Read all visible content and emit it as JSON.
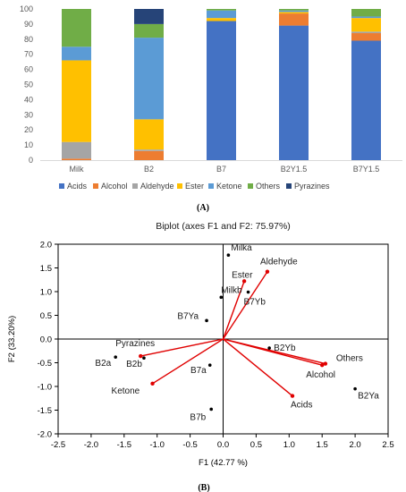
{
  "chart_data": [
    {
      "type": "bar",
      "stacked": true,
      "panel_label": "(A)",
      "categories": [
        "Milk",
        "B2",
        "B7",
        "B2Y1.5",
        "B7Y1.5"
      ],
      "ylim": [
        0,
        100
      ],
      "yticks": [
        0,
        10,
        20,
        30,
        40,
        50,
        60,
        70,
        80,
        90,
        100
      ],
      "legend_position": "bottom",
      "grid": false,
      "series": [
        {
          "name": "Acids",
          "color": "#4472C4",
          "values": [
            0,
            0,
            92,
            89,
            79
          ]
        },
        {
          "name": "Alcohol",
          "color": "#ED7D31",
          "values": [
            1,
            6,
            0,
            8,
            5
          ]
        },
        {
          "name": "Aldehyde",
          "color": "#A5A5A5",
          "values": [
            11,
            1,
            0,
            0,
            1
          ]
        },
        {
          "name": "Ester",
          "color": "#FFC000",
          "values": [
            54,
            20,
            2,
            1,
            9
          ]
        },
        {
          "name": "Ketone",
          "color": "#5B9BD5",
          "values": [
            9,
            54,
            5,
            1,
            1
          ]
        },
        {
          "name": "Others",
          "color": "#70AD47",
          "values": [
            25,
            9,
            1,
            1,
            5
          ]
        },
        {
          "name": "Pyrazines",
          "color": "#264478",
          "values": [
            0,
            10,
            0,
            0,
            0
          ]
        }
      ]
    },
    {
      "type": "scatter",
      "title": "Biplot (axes F1 and F2: 75.97%)",
      "panel_label": "(B)",
      "xlabel": "F1 (42.77 %)",
      "ylabel": "F2 (33.20%)",
      "xlim": [
        -2.5,
        2.5
      ],
      "ylim": [
        -2.0,
        2.0
      ],
      "xticks": [
        "-2.5",
        "-2.0",
        "-1.5",
        "-1.0",
        "-0.5",
        "0.0",
        "0.5",
        "1.0",
        "1.5",
        "2.0",
        "2.5"
      ],
      "yticks": [
        "-2.0",
        "-1.5",
        "-1.0",
        "-0.5",
        "0.0",
        "0.5",
        "1.0",
        "1.5",
        "2.0"
      ],
      "observations": [
        {
          "name": "Milka",
          "x": 0.08,
          "y": 1.77
        },
        {
          "name": "Milkb",
          "x": -0.03,
          "y": 0.88
        },
        {
          "name": "B7Ya",
          "x": -0.25,
          "y": 0.39
        },
        {
          "name": "B7Yb",
          "x": 0.38,
          "y": 0.99
        },
        {
          "name": "B2Yb",
          "x": 0.7,
          "y": -0.19
        },
        {
          "name": "B2a",
          "x": -1.63,
          "y": -0.38
        },
        {
          "name": "B2b",
          "x": -1.2,
          "y": -0.4
        },
        {
          "name": "B7a",
          "x": -0.2,
          "y": -0.55
        },
        {
          "name": "B7b",
          "x": -0.18,
          "y": -1.48
        },
        {
          "name": "B2Ya",
          "x": 2.0,
          "y": -1.05
        }
      ],
      "variables": [
        {
          "name": "Ester",
          "x": 0.32,
          "y": 1.22
        },
        {
          "name": "Aldehyde",
          "x": 0.67,
          "y": 1.42
        },
        {
          "name": "Pyrazines",
          "x": -1.25,
          "y": -0.36
        },
        {
          "name": "Ketone",
          "x": -1.07,
          "y": -0.94
        },
        {
          "name": "Others",
          "x": 1.55,
          "y": -0.52
        },
        {
          "name": "Alcohol",
          "x": 1.5,
          "y": -0.55
        },
        {
          "name": "Acids",
          "x": 1.05,
          "y": -1.2
        }
      ],
      "observation_color": "#000000",
      "vector_color": "#E00000"
    }
  ]
}
